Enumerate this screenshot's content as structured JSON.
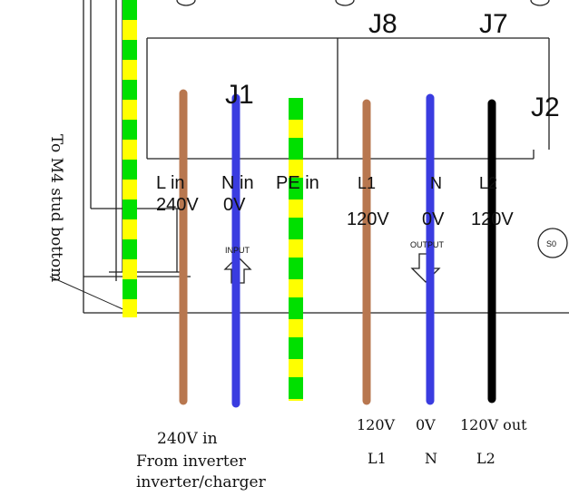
{
  "connectors": {
    "j8": "J8",
    "j7": "J7",
    "j1": "J1",
    "j2": "J2"
  },
  "terminals": {
    "input": [
      "L in",
      "N in",
      "PE in"
    ],
    "input_voltages": [
      "240V",
      "0V"
    ],
    "output": [
      "L1",
      "N",
      "L2"
    ],
    "output_voltages": [
      "120V",
      "0V",
      "120V"
    ],
    "input_arrow": "INPUT",
    "output_arrow": "OUTPUT",
    "stud": "S0"
  },
  "side_label": "To M4 stud bottom",
  "bottom": {
    "input_line1": "240V in",
    "input_line2": "From inverter",
    "input_line3": "inverter/charger",
    "out_v1": "120V",
    "out_v2": "0V",
    "out_v3": "120V out",
    "out_n1": "L1",
    "out_n2": "N",
    "out_n3": "L2"
  },
  "colors": {
    "brown": "#b8774f",
    "blue": "#3a3ce0",
    "black": "#000000",
    "green": "#00e000",
    "yellow": "#ffff00",
    "line": "#222222"
  }
}
